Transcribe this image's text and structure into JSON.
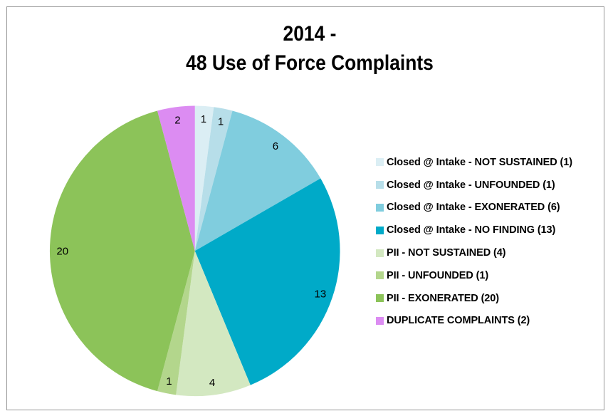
{
  "chart_data": {
    "type": "pie",
    "title": "2014 - 48 Use of Force Complaints",
    "title_lines": [
      "2014 -",
      "48 Use of Force Complaints"
    ],
    "total": 48,
    "start_angle_deg": 0,
    "direction": "clockwise",
    "legend_position": "right",
    "data_labels": "value",
    "slices": [
      {
        "label": "Closed @ Intake - NOT SUSTAINED",
        "value": 1,
        "color": "#DBEEF4",
        "legend_text": "Closed @ Intake - NOT SUSTAINED (1)"
      },
      {
        "label": "Closed @ Intake - UNFOUNDED",
        "value": 1,
        "color": "#B7DEE9",
        "legend_text": "Closed @ Intake - UNFOUNDED (1)"
      },
      {
        "label": "Closed @ Intake - EXONERATED",
        "value": 6,
        "color": "#80CDDE",
        "legend_text": "Closed @ Intake - EXONERATED (6)"
      },
      {
        "label": "Closed @ Intake - NO FINDING",
        "value": 13,
        "color": "#00AAC8",
        "legend_text": "Closed @ Intake - NO FINDING (13)"
      },
      {
        "label": "PII - NOT SUSTAINED",
        "value": 4,
        "color": "#D3E8C1",
        "legend_text": "PII - NOT SUSTAINED (4)"
      },
      {
        "label": "PII - UNFOUNDED",
        "value": 1,
        "color": "#B3D68C",
        "legend_text": "PII - UNFOUNDED (1)"
      },
      {
        "label": "PII - EXONERATED",
        "value": 20,
        "color": "#8CC359",
        "legend_text": "PII - EXONERATED (20)"
      },
      {
        "label": "DUPLICATE COMPLAINTS",
        "value": 2,
        "color": "#DC8CF2",
        "legend_text": "DUPLICATE COMPLAINTS (2)"
      }
    ]
  },
  "frame": {
    "border_color": "#969696",
    "background": "#FFFFFF"
  }
}
